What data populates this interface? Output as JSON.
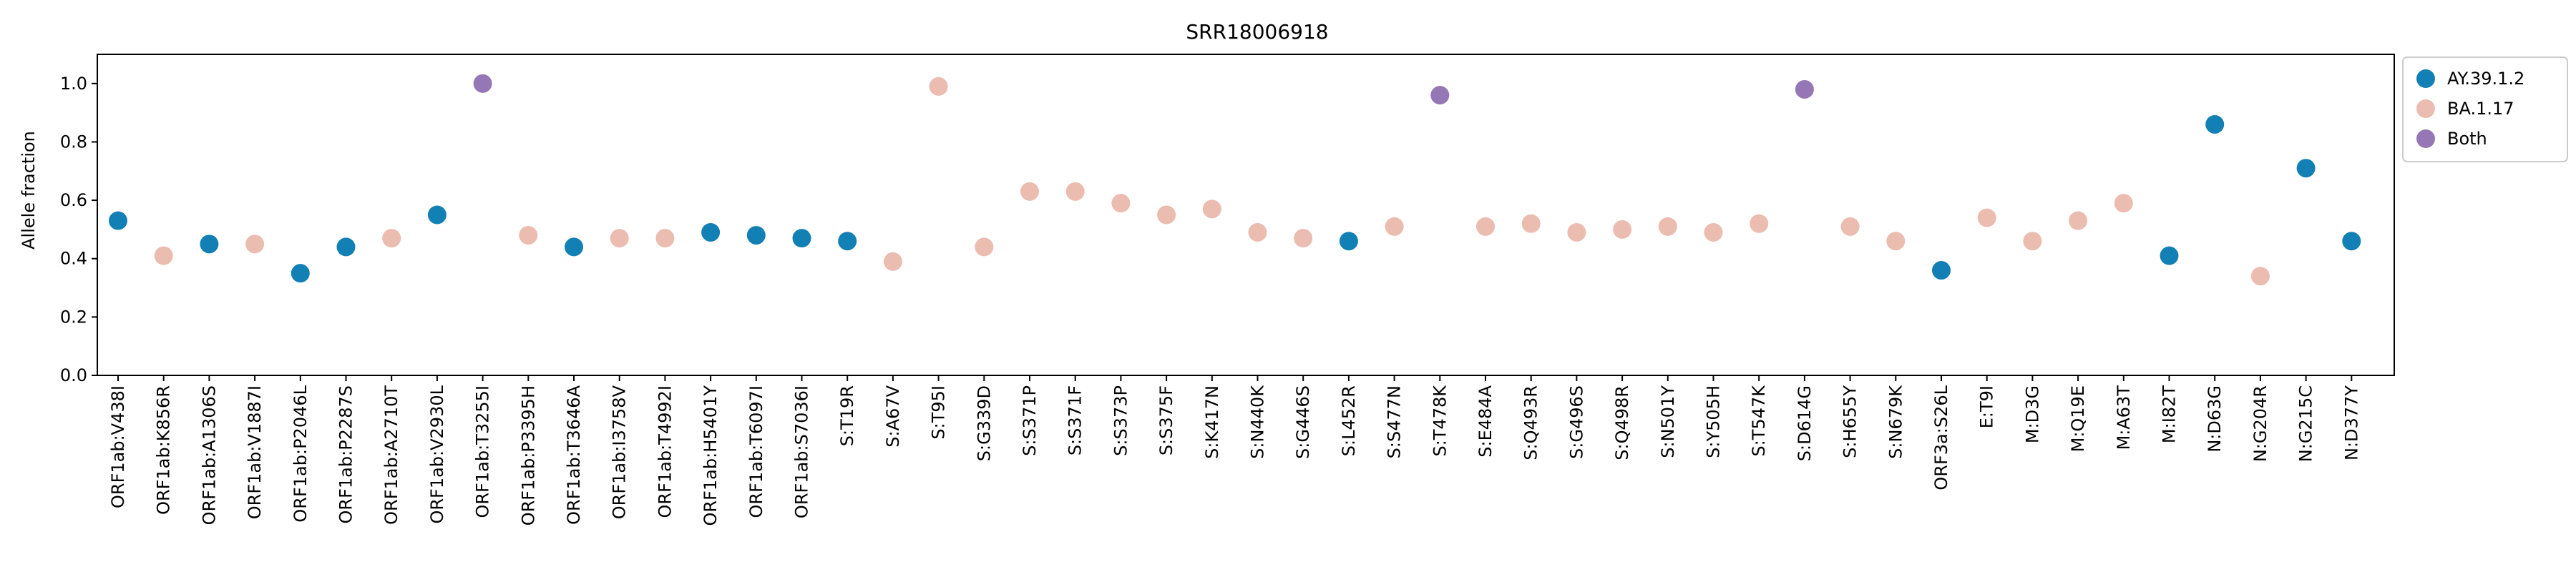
{
  "chart_data": {
    "type": "scatter",
    "title": "SRR18006918",
    "xlabel": "",
    "ylabel": "Allele fraction",
    "ylim": [
      0,
      1.1
    ],
    "yticks": [
      "0.0",
      "0.2",
      "0.4",
      "0.6",
      "0.8",
      "1.0"
    ],
    "grid": false,
    "legend_position": "outside-top-right",
    "legend": [
      {
        "name": "AY.39.1.2",
        "color": "#1380b5"
      },
      {
        "name": "BA.1.17",
        "color": "#ebbcb0"
      },
      {
        "name": "Both",
        "color": "#9677b6"
      }
    ],
    "points": [
      {
        "x": "ORF1ab:V438I",
        "y": 0.53,
        "group": "AY.39.1.2"
      },
      {
        "x": "ORF1ab:K856R",
        "y": 0.41,
        "group": "BA.1.17"
      },
      {
        "x": "ORF1ab:A1306S",
        "y": 0.45,
        "group": "AY.39.1.2"
      },
      {
        "x": "ORF1ab:V1887I",
        "y": 0.45,
        "group": "BA.1.17"
      },
      {
        "x": "ORF1ab:P2046L",
        "y": 0.35,
        "group": "AY.39.1.2"
      },
      {
        "x": "ORF1ab:P2287S",
        "y": 0.44,
        "group": "AY.39.1.2"
      },
      {
        "x": "ORF1ab:A2710T",
        "y": 0.47,
        "group": "BA.1.17"
      },
      {
        "x": "ORF1ab:V2930L",
        "y": 0.55,
        "group": "AY.39.1.2"
      },
      {
        "x": "ORF1ab:T3255I",
        "y": 1.0,
        "group": "Both"
      },
      {
        "x": "ORF1ab:P3395H",
        "y": 0.48,
        "group": "BA.1.17"
      },
      {
        "x": "ORF1ab:T3646A",
        "y": 0.44,
        "group": "AY.39.1.2"
      },
      {
        "x": "ORF1ab:I3758V",
        "y": 0.47,
        "group": "BA.1.17"
      },
      {
        "x": "ORF1ab:T4992I",
        "y": 0.47,
        "group": "BA.1.17"
      },
      {
        "x": "ORF1ab:H5401Y",
        "y": 0.49,
        "group": "AY.39.1.2"
      },
      {
        "x": "ORF1ab:T6097I",
        "y": 0.48,
        "group": "AY.39.1.2"
      },
      {
        "x": "ORF1ab:S7036I",
        "y": 0.47,
        "group": "AY.39.1.2"
      },
      {
        "x": "S:T19R",
        "y": 0.46,
        "group": "AY.39.1.2"
      },
      {
        "x": "S:A67V",
        "y": 0.39,
        "group": "BA.1.17"
      },
      {
        "x": "S:T95I",
        "y": 0.99,
        "group": "BA.1.17"
      },
      {
        "x": "S:G339D",
        "y": 0.44,
        "group": "BA.1.17"
      },
      {
        "x": "S:S371P",
        "y": 0.63,
        "group": "BA.1.17"
      },
      {
        "x": "S:S371F",
        "y": 0.63,
        "group": "BA.1.17"
      },
      {
        "x": "S:S373P",
        "y": 0.59,
        "group": "BA.1.17"
      },
      {
        "x": "S:S375F",
        "y": 0.55,
        "group": "BA.1.17"
      },
      {
        "x": "S:K417N",
        "y": 0.57,
        "group": "BA.1.17"
      },
      {
        "x": "S:N440K",
        "y": 0.49,
        "group": "BA.1.17"
      },
      {
        "x": "S:G446S",
        "y": 0.47,
        "group": "BA.1.17"
      },
      {
        "x": "S:L452R",
        "y": 0.46,
        "group": "AY.39.1.2"
      },
      {
        "x": "S:S477N",
        "y": 0.51,
        "group": "BA.1.17"
      },
      {
        "x": "S:T478K",
        "y": 0.96,
        "group": "Both"
      },
      {
        "x": "S:E484A",
        "y": 0.51,
        "group": "BA.1.17"
      },
      {
        "x": "S:Q493R",
        "y": 0.52,
        "group": "BA.1.17"
      },
      {
        "x": "S:G496S",
        "y": 0.49,
        "group": "BA.1.17"
      },
      {
        "x": "S:Q498R",
        "y": 0.5,
        "group": "BA.1.17"
      },
      {
        "x": "S:N501Y",
        "y": 0.51,
        "group": "BA.1.17"
      },
      {
        "x": "S:Y505H",
        "y": 0.49,
        "group": "BA.1.17"
      },
      {
        "x": "S:T547K",
        "y": 0.52,
        "group": "BA.1.17"
      },
      {
        "x": "S:D614G",
        "y": 0.98,
        "group": "Both"
      },
      {
        "x": "S:H655Y",
        "y": 0.51,
        "group": "BA.1.17"
      },
      {
        "x": "S:N679K",
        "y": 0.46,
        "group": "BA.1.17"
      },
      {
        "x": "ORF3a:S26L",
        "y": 0.36,
        "group": "AY.39.1.2"
      },
      {
        "x": "E:T9I",
        "y": 0.54,
        "group": "BA.1.17"
      },
      {
        "x": "M:D3G",
        "y": 0.46,
        "group": "BA.1.17"
      },
      {
        "x": "M:Q19E",
        "y": 0.53,
        "group": "BA.1.17"
      },
      {
        "x": "M:A63T",
        "y": 0.59,
        "group": "BA.1.17"
      },
      {
        "x": "M:I82T",
        "y": 0.41,
        "group": "AY.39.1.2"
      },
      {
        "x": "N:D63G",
        "y": 0.86,
        "group": "AY.39.1.2"
      },
      {
        "x": "N:G204R",
        "y": 0.34,
        "group": "BA.1.17"
      },
      {
        "x": "N:G215C",
        "y": 0.71,
        "group": "AY.39.1.2"
      },
      {
        "x": "N:D377Y",
        "y": 0.46,
        "group": "AY.39.1.2"
      }
    ]
  }
}
